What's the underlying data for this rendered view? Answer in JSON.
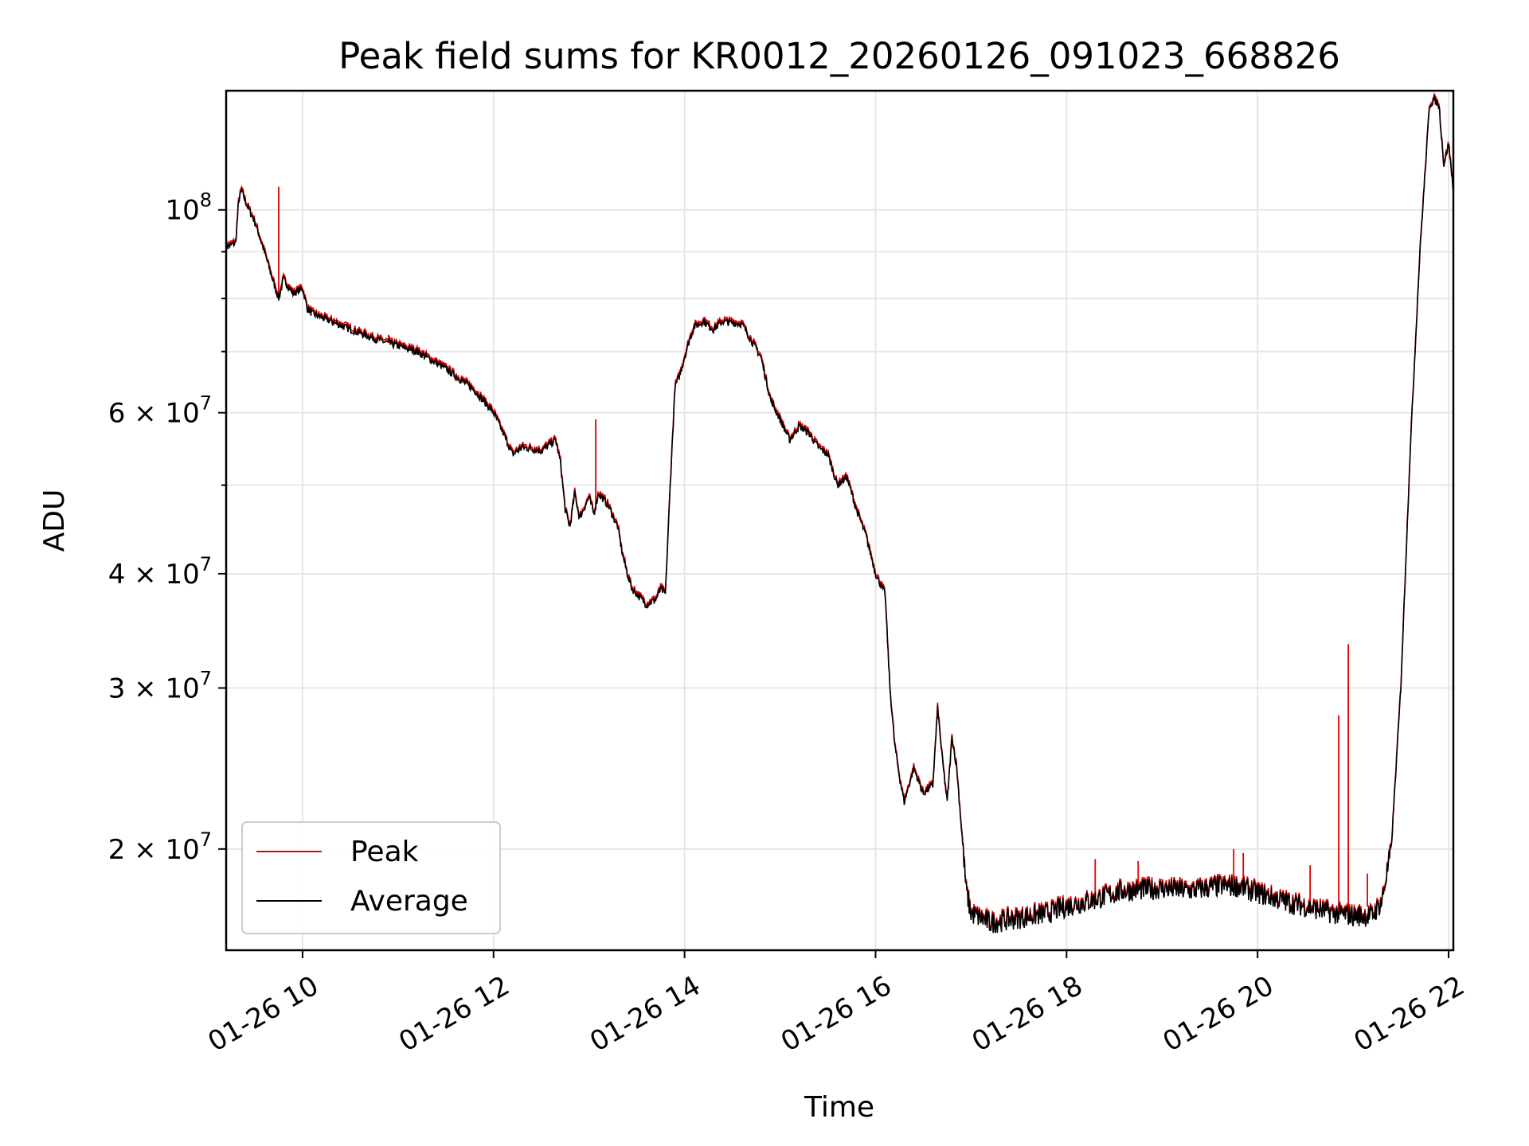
{
  "chart_data": {
    "type": "line",
    "title": "Peak field sums for KR0012_20260126_091023_668826",
    "xlabel": "Time",
    "ylabel": "ADU",
    "x_range_hours": [
      9.2,
      22.05
    ],
    "y_range": [
      15500000,
      135000000
    ],
    "y_scale": "log",
    "grid": true,
    "legend_position": "lower-left",
    "x_ticks": [
      {
        "value": 10,
        "label": "01-26 10"
      },
      {
        "value": 12,
        "label": "01-26 12"
      },
      {
        "value": 14,
        "label": "01-26 14"
      },
      {
        "value": 16,
        "label": "01-26 16"
      },
      {
        "value": 18,
        "label": "01-26 18"
      },
      {
        "value": 20,
        "label": "01-26 20"
      },
      {
        "value": 22,
        "label": "01-26 22"
      }
    ],
    "y_ticks": [
      {
        "value": 100000000,
        "base": "10",
        "exp": "8",
        "label": "10^8"
      },
      {
        "value": 60000000,
        "base": "6 × 10",
        "exp": "7",
        "label": "6 × 10^7"
      },
      {
        "value": 40000000,
        "base": "4 × 10",
        "exp": "7",
        "label": "4 × 10^7"
      },
      {
        "value": 30000000,
        "base": "3 × 10",
        "exp": "7",
        "label": "3 × 10^7"
      },
      {
        "value": 20000000,
        "base": "2 × 10",
        "exp": "7",
        "label": "2 × 10^7"
      }
    ],
    "y_minor_ticks": [
      90000000,
      80000000,
      70000000,
      50000000
    ],
    "series": [
      {
        "name": "Average",
        "color": "#000000",
        "x": [
          9.2,
          9.3,
          9.33,
          9.36,
          9.42,
          9.5,
          9.6,
          9.7,
          9.75,
          9.8,
          9.9,
          10.0,
          10.05,
          10.1,
          10.3,
          10.5,
          10.8,
          11.0,
          11.2,
          11.5,
          11.8,
          12.0,
          12.1,
          12.2,
          12.3,
          12.5,
          12.65,
          12.7,
          12.75,
          12.8,
          12.85,
          12.9,
          13.0,
          13.05,
          13.1,
          13.2,
          13.3,
          13.35,
          13.4,
          13.45,
          13.5,
          13.6,
          13.7,
          13.75,
          13.8,
          13.85,
          13.9,
          13.95,
          14.0,
          14.05,
          14.1,
          14.2,
          14.3,
          14.4,
          14.6,
          14.8,
          14.9,
          15.0,
          15.1,
          15.2,
          15.3,
          15.4,
          15.5,
          15.6,
          15.7,
          15.8,
          15.9,
          16.0,
          16.1,
          16.15,
          16.2,
          16.25,
          16.3,
          16.4,
          16.5,
          16.6,
          16.65,
          16.7,
          16.75,
          16.8,
          16.85,
          16.9,
          16.95,
          17.0,
          17.2,
          17.5,
          17.8,
          18.0,
          18.3,
          18.6,
          19.0,
          19.3,
          19.6,
          19.8,
          20.0,
          20.3,
          20.6,
          20.8,
          21.0,
          21.2,
          21.3,
          21.4,
          21.5,
          21.6,
          21.7,
          21.8,
          21.85,
          21.9,
          21.95,
          22.0,
          22.05
        ],
        "values": [
          91000000,
          92000000,
          102000000,
          105000000,
          101000000,
          97000000,
          90000000,
          83000000,
          80000000,
          84000000,
          81000000,
          82000000,
          78000000,
          77000000,
          75500000,
          74000000,
          72000000,
          71000000,
          70000000,
          67000000,
          63500000,
          60000000,
          57000000,
          54000000,
          55000000,
          54500000,
          56000000,
          53000000,
          47000000,
          45000000,
          49000000,
          46000000,
          48500000,
          46500000,
          49000000,
          47500000,
          45000000,
          42000000,
          40000000,
          38500000,
          38000000,
          37000000,
          37500000,
          38500000,
          38000000,
          50000000,
          64000000,
          66000000,
          69000000,
          72000000,
          74500000,
          75500000,
          74000000,
          75500000,
          75000000,
          69000000,
          62000000,
          59000000,
          56000000,
          58000000,
          57000000,
          55000000,
          54000000,
          50000000,
          51000000,
          47000000,
          44000000,
          40000000,
          38000000,
          30000000,
          26000000,
          24000000,
          22500000,
          24500000,
          23000000,
          23500000,
          28500000,
          25000000,
          22500000,
          26500000,
          24500000,
          21000000,
          18000000,
          17000000,
          16600000,
          16800000,
          17000000,
          17300000,
          17600000,
          18000000,
          18100000,
          18000000,
          18200000,
          18200000,
          17900000,
          17500000,
          17200000,
          17000000,
          16900000,
          16900000,
          17500000,
          20000000,
          30000000,
          55000000,
          90000000,
          130000000,
          132000000,
          130000000,
          112000000,
          118000000,
          105000000
        ]
      },
      {
        "name": "Peak",
        "color": "#e00000",
        "spikes": [
          {
            "x": 9.75,
            "value": 106000000,
            "base": 80000000
          },
          {
            "x": 10.9,
            "value": 73000000,
            "base": 71500000
          },
          {
            "x": 13.07,
            "value": 59000000,
            "base": 47000000
          },
          {
            "x": 18.3,
            "value": 19500000,
            "base": 17600000
          },
          {
            "x": 18.75,
            "value": 19400000,
            "base": 18000000
          },
          {
            "x": 19.75,
            "value": 20000000,
            "base": 18200000
          },
          {
            "x": 19.85,
            "value": 19800000,
            "base": 18100000
          },
          {
            "x": 20.55,
            "value": 19200000,
            "base": 17100000
          },
          {
            "x": 20.85,
            "value": 28000000,
            "base": 16900000
          },
          {
            "x": 20.95,
            "value": 33500000,
            "base": 16900000
          },
          {
            "x": 21.15,
            "value": 18800000,
            "base": 17300000
          }
        ]
      }
    ],
    "legend": [
      {
        "label": "Peak",
        "color": "#e00000"
      },
      {
        "label": "Average",
        "color": "#000000"
      }
    ]
  }
}
